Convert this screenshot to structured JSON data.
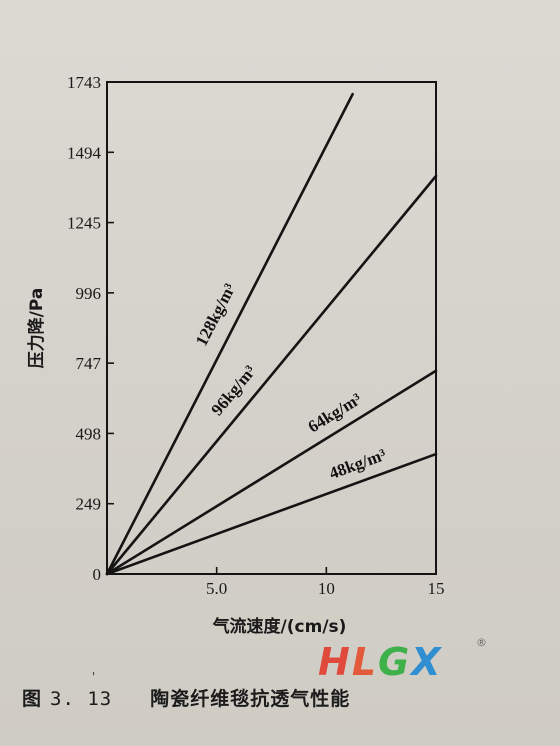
{
  "chart_data": {
    "type": "line",
    "xlabel": "气流速度/(cm/s)",
    "ylabel": "压力降/Pa",
    "xlim": [
      0,
      15
    ],
    "ylim": [
      0,
      1743
    ],
    "x_ticks": [
      "5.0",
      "10",
      "15"
    ],
    "y_ticks": [
      "0",
      "249",
      "498",
      "747",
      "996",
      "1245",
      "1494",
      "1743"
    ],
    "grid": false,
    "legend": "none",
    "series": [
      {
        "name": "128kg/m³",
        "x": [
          0,
          11.2
        ],
        "y": [
          0,
          1700
        ]
      },
      {
        "name": "96kg/m³",
        "x": [
          0,
          15
        ],
        "y": [
          0,
          1410
        ]
      },
      {
        "name": "64kg/m³",
        "x": [
          0,
          15
        ],
        "y": [
          0,
          720
        ]
      },
      {
        "name": "48kg/m³",
        "x": [
          0,
          15
        ],
        "y": [
          0,
          425
        ]
      }
    ]
  },
  "caption": {
    "figure_label": "图",
    "figure_number": "3. 13",
    "title": "陶瓷纤维毯抗透气性能"
  },
  "watermark": {
    "letters": [
      "H",
      "L",
      "G",
      "X"
    ],
    "registered": "®"
  },
  "stray_mark": "'",
  "colors": {
    "line": "#141414",
    "paper": "#d8d5ce",
    "logo_red": "#e04a3c",
    "logo_green": "#3fb14a",
    "logo_blue": "#2f8fd0"
  }
}
